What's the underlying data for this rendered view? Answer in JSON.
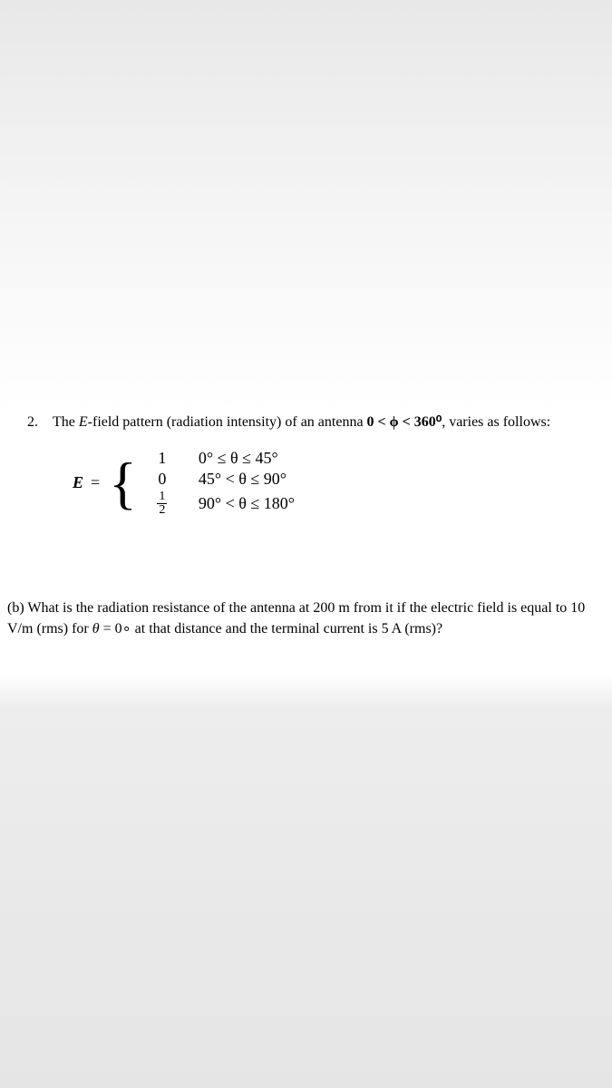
{
  "problem": {
    "number": "2.",
    "intro_part1": "The ",
    "intro_italic": "E",
    "intro_part2": "-field pattern (radiation intensity) of an antenna ",
    "range_bold": "0 < ϕ < 360⁰",
    "intro_part3": ", varies as follows:",
    "equation": {
      "lhs": "E",
      "equals": "=",
      "cases": [
        {
          "value": "1",
          "condition": "0° ≤ θ ≤ 45°",
          "is_fraction": false
        },
        {
          "value": "0",
          "condition": "45° < θ ≤ 90°",
          "is_fraction": false
        },
        {
          "num": "1",
          "den": "2",
          "condition": "90° < θ ≤ 180°",
          "is_fraction": true
        }
      ]
    }
  },
  "part_b": {
    "text_1": "(b) What is the radiation resistance of the antenna at 200 m from it if the electric field is equal to 10 V/m (rms) for ",
    "theta": "θ",
    "text_2": " = 0∘ at that distance and the terminal current is 5 A (rms)?"
  },
  "colors": {
    "text": "#000000",
    "background_white": "#ffffff",
    "background_gray_top": "#e8e8e8",
    "background_gray_bottom": "#e5e5e5"
  },
  "typography": {
    "body_font": "Times New Roman",
    "body_size_pt": 12,
    "equation_size_pt": 14
  }
}
